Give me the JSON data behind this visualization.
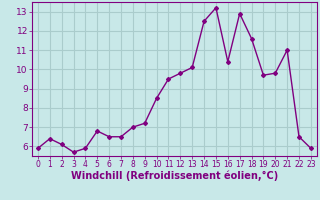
{
  "x": [
    0,
    1,
    2,
    3,
    4,
    5,
    6,
    7,
    8,
    9,
    10,
    11,
    12,
    13,
    14,
    15,
    16,
    17,
    18,
    19,
    20,
    21,
    22,
    23
  ],
  "y": [
    5.9,
    6.4,
    6.1,
    5.7,
    5.9,
    6.8,
    6.5,
    6.5,
    7.0,
    7.2,
    8.5,
    9.5,
    9.8,
    10.1,
    12.5,
    13.2,
    10.4,
    12.9,
    11.6,
    9.7,
    9.8,
    11.0,
    6.5,
    5.9
  ],
  "line_color": "#800080",
  "marker": "D",
  "marker_size": 2,
  "linewidth": 1.0,
  "xlabel": "Windchill (Refroidissement éolien,°C)",
  "ylim": [
    5.5,
    13.5
  ],
  "xlim": [
    -0.5,
    23.5
  ],
  "yticks": [
    6,
    7,
    8,
    9,
    10,
    11,
    12,
    13
  ],
  "xticks": [
    0,
    1,
    2,
    3,
    4,
    5,
    6,
    7,
    8,
    9,
    10,
    11,
    12,
    13,
    14,
    15,
    16,
    17,
    18,
    19,
    20,
    21,
    22,
    23
  ],
  "bg_color": "#c8e8e8",
  "grid_color": "#aacccc",
  "tick_color": "#800080",
  "xlabel_color": "#800080",
  "xlabel_fontsize": 7,
  "tick_fontsize_x": 5.5,
  "tick_fontsize_y": 6.5
}
